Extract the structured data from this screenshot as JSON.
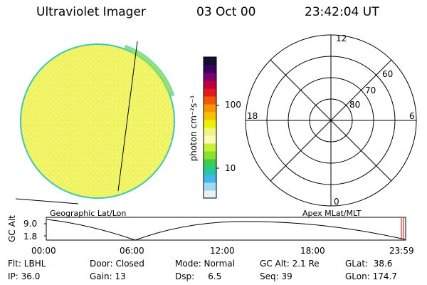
{
  "header": {
    "title": "Ultraviolet Imager",
    "date": "03 Oct 00",
    "time": "23:42:04 UT"
  },
  "globe": {
    "caption": "Geographic Lat/Lon",
    "fill_color": "#f2f56a",
    "rim_color": "#3fc8b0"
  },
  "colorbar": {
    "unit_label": "photon cm⁻²s⁻¹",
    "ticks": [
      "100",
      "10"
    ],
    "colors": [
      "#101030",
      "#3a0060",
      "#7a0070",
      "#c0003c",
      "#e31a1c",
      "#f05a00",
      "#f79400",
      "#f5c200",
      "#eaf000",
      "#f3f480",
      "#fbfbb8",
      "#c9f030",
      "#88e030",
      "#38d048",
      "#24c8a8",
      "#40b8e8",
      "#a0d8f0",
      "#e8f0f8"
    ]
  },
  "polar": {
    "caption": "Apex MLat/MLT",
    "mlt_labels": {
      "top": "12",
      "left": "18",
      "right": "6",
      "bottom": "0"
    },
    "lat_labels": [
      "60",
      "70",
      "80"
    ]
  },
  "orbit": {
    "axis_label": "GC Alt",
    "ylabels": [
      "9.0",
      "1.8"
    ],
    "xlabels": [
      "00:00",
      "06:00",
      "12:00",
      "18:00",
      "23:59"
    ],
    "cursor_color": "#d00000"
  },
  "status": {
    "row1": [
      "Flt: LBHL",
      "Door: Closed",
      "Mode: Normal",
      "GC Alt: 2.1 Re",
      "GLat:  38.6"
    ],
    "row2": [
      "IP: 36.0",
      "Gain: 13",
      "Dsp:     6.5",
      "Seq: 39",
      "GLon: 174.7"
    ]
  }
}
